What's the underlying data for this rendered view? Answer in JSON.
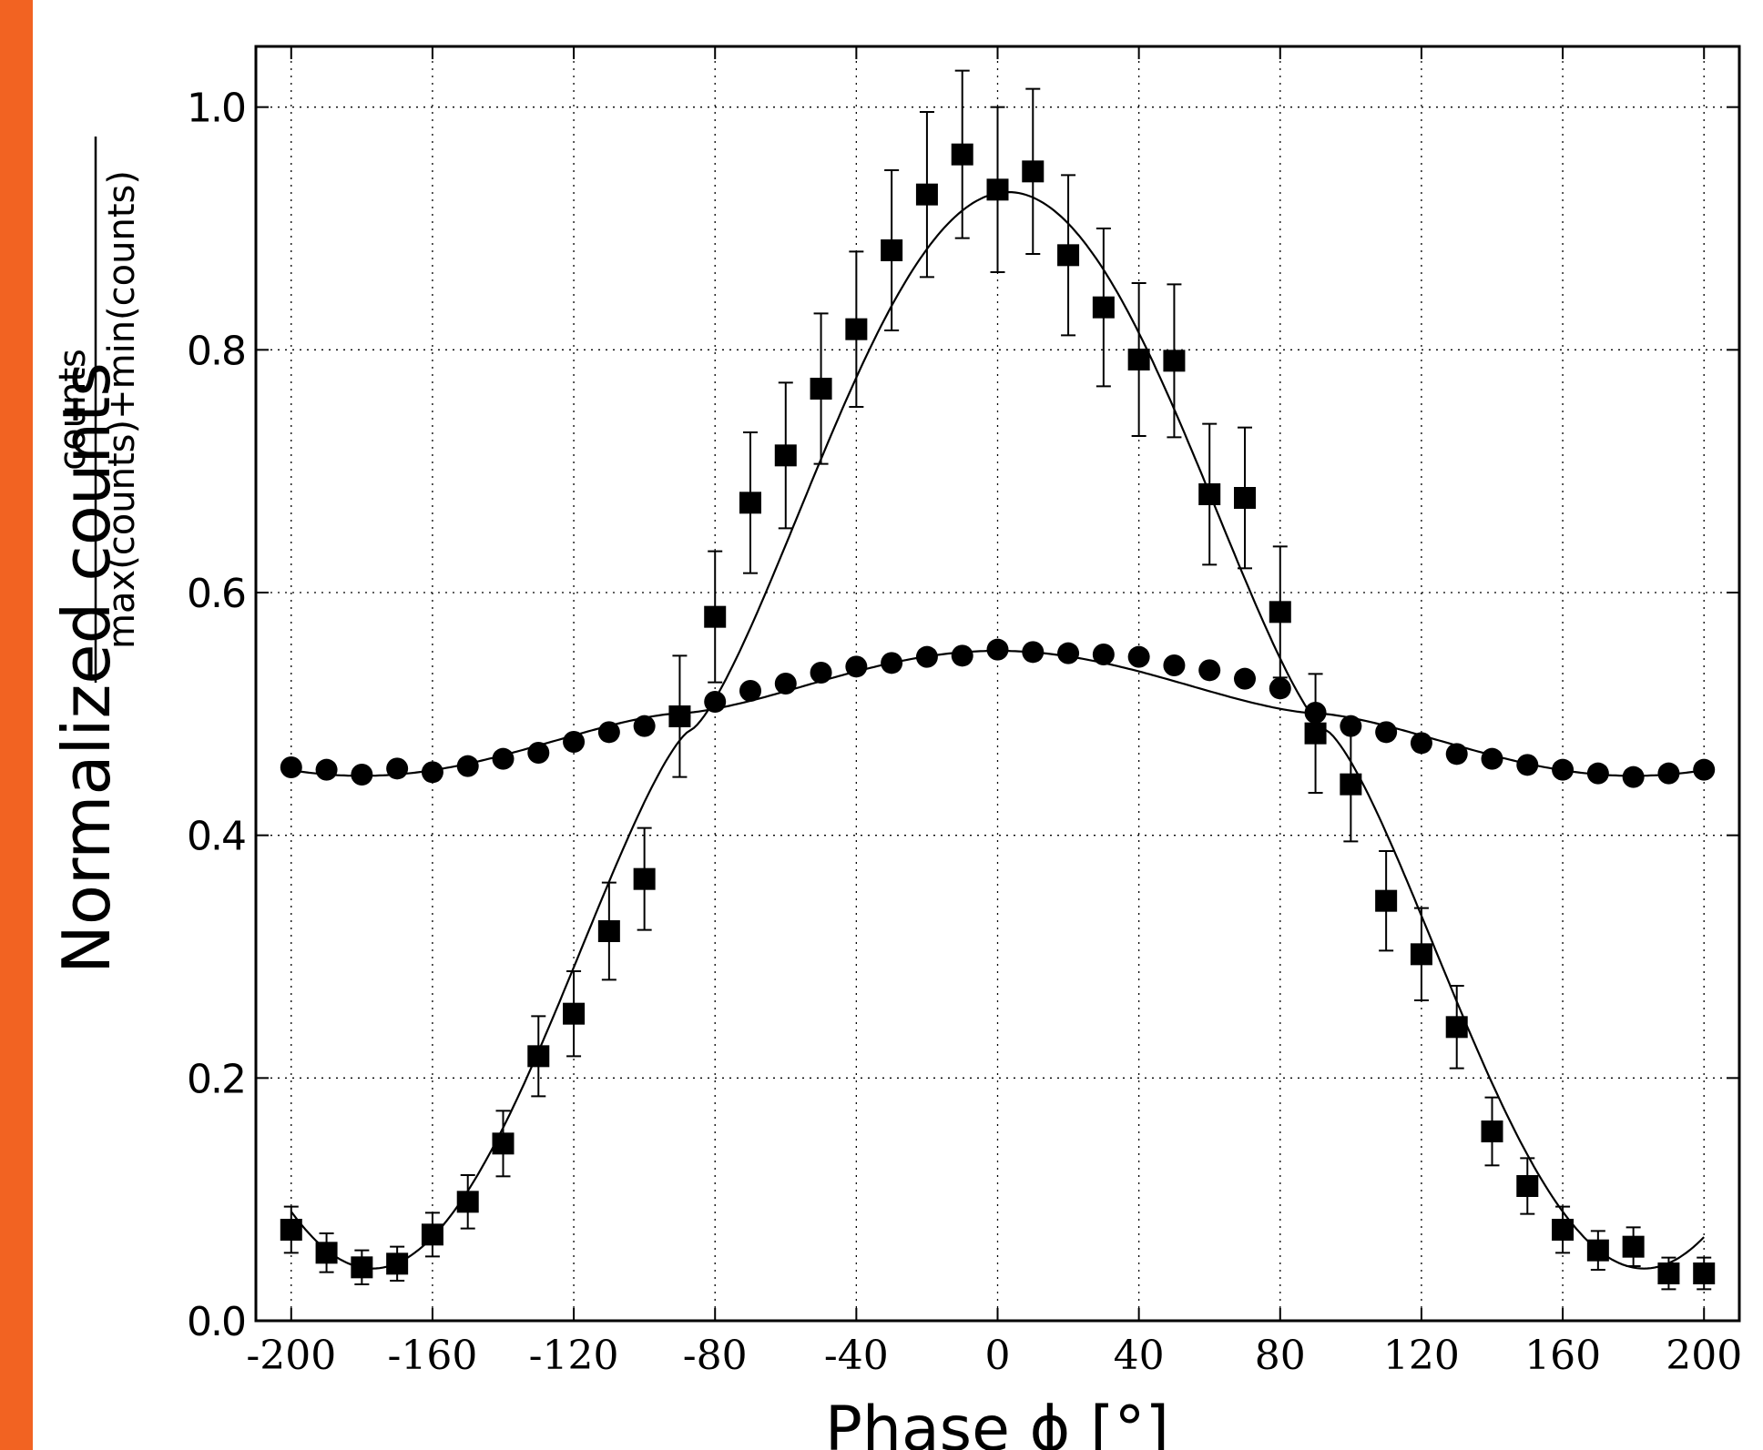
{
  "accent_color": "#f26322",
  "chart_data": {
    "type": "scatter",
    "title": "",
    "xlabel": "Phase ϕ [°]",
    "ylabel": "Normalized counts",
    "ylabel_fraction": {
      "numerator": "counts",
      "denominator": "max(counts)+min(counts)"
    },
    "xlim": [
      -210,
      210
    ],
    "ylim": [
      0.0,
      1.05
    ],
    "x_ticks": [
      -200,
      -160,
      -120,
      -80,
      -40,
      0,
      40,
      80,
      120,
      160,
      200
    ],
    "x_tick_labels": [
      "-200",
      "-160",
      "-120",
      "-80",
      "-40",
      "0",
      "40",
      "80",
      "120",
      "160",
      "200"
    ],
    "y_ticks": [
      0.0,
      0.2,
      0.4,
      0.6,
      0.8,
      1.0
    ],
    "y_tick_labels": [
      "0.0",
      "0.2",
      "0.4",
      "0.6",
      "0.8",
      "1.0"
    ],
    "grid": true,
    "grid_style": "dotted",
    "series": [
      {
        "marker": "square",
        "color": "#000000",
        "x": [
          -200,
          -190,
          -180,
          -170,
          -160,
          -150,
          -140,
          -130,
          -120,
          -110,
          -100,
          -90,
          -80,
          -70,
          -60,
          -50,
          -40,
          -30,
          -20,
          -10,
          0,
          10,
          20,
          30,
          40,
          50,
          60,
          70,
          80,
          90,
          100,
          110,
          120,
          130,
          140,
          150,
          160,
          170,
          180,
          190,
          200
        ],
        "y": [
          0.075,
          0.056,
          0.044,
          0.047,
          0.071,
          0.098,
          0.146,
          0.218,
          0.253,
          0.321,
          0.364,
          0.498,
          0.58,
          0.674,
          0.713,
          0.768,
          0.817,
          0.882,
          0.928,
          0.961,
          0.932,
          0.947,
          0.878,
          0.835,
          0.792,
          0.791,
          0.681,
          0.678,
          0.584,
          0.484,
          0.442,
          0.346,
          0.302,
          0.242,
          0.156,
          0.111,
          0.075,
          0.058,
          0.061,
          0.039,
          0.039
        ],
        "yerr": [
          0.019,
          0.016,
          0.014,
          0.014,
          0.018,
          0.022,
          0.027,
          0.033,
          0.035,
          0.04,
          0.042,
          0.05,
          0.054,
          0.058,
          0.06,
          0.062,
          0.064,
          0.066,
          0.068,
          0.069,
          0.068,
          0.068,
          0.066,
          0.065,
          0.063,
          0.063,
          0.058,
          0.058,
          0.054,
          0.049,
          0.047,
          0.041,
          0.038,
          0.034,
          0.028,
          0.023,
          0.019,
          0.016,
          0.016,
          0.013,
          0.013
        ]
      },
      {
        "marker": "circle",
        "color": "#000000",
        "x": [
          -200,
          -190,
          -180,
          -170,
          -160,
          -150,
          -140,
          -130,
          -120,
          -110,
          -100,
          -90,
          -80,
          -70,
          -60,
          -50,
          -40,
          -30,
          -20,
          -10,
          0,
          10,
          20,
          30,
          40,
          50,
          60,
          70,
          80,
          90,
          100,
          110,
          120,
          130,
          140,
          150,
          160,
          170,
          180,
          190,
          200
        ],
        "y": [
          0.456,
          0.454,
          0.45,
          0.455,
          0.452,
          0.457,
          0.463,
          0.468,
          0.477,
          0.485,
          0.49,
          0.498,
          0.51,
          0.519,
          0.525,
          0.534,
          0.539,
          0.542,
          0.547,
          0.548,
          0.553,
          0.551,
          0.55,
          0.549,
          0.547,
          0.54,
          0.536,
          0.529,
          0.521,
          0.501,
          0.49,
          0.485,
          0.476,
          0.467,
          0.463,
          0.458,
          0.454,
          0.451,
          0.448,
          0.451,
          0.454
        ]
      }
    ],
    "fits": [
      {
        "model": "cosine",
        "offset": 0.4865,
        "amplitude": 0.4435,
        "phase_center": 3,
        "period": 360,
        "shape_exponent": 1.35
      },
      {
        "model": "cosine",
        "offset": 0.5005,
        "amplitude": 0.0515,
        "phase_center": 0,
        "period": 360,
        "shape_exponent": 1.5
      }
    ]
  }
}
